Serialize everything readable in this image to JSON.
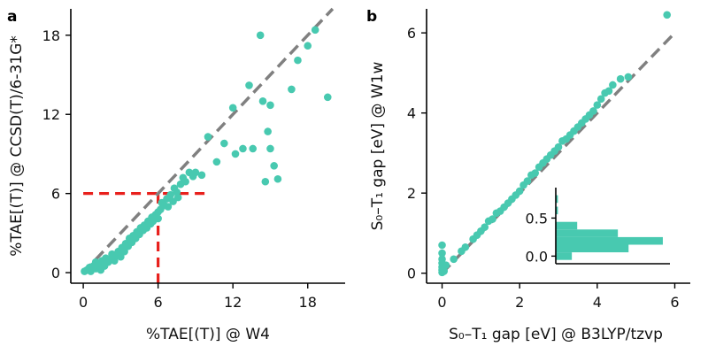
{
  "colors": {
    "points": "#48c9b0",
    "diagonal": "#808080",
    "guide": "#e8201c",
    "axis": "#000000"
  },
  "chart_data": [
    {
      "panel_label": "a",
      "type": "scatter",
      "xlabel": "%TAE[(T)] @ W4",
      "ylabel": "%TAE[(T)] @ CCSD(T)/6-31G*",
      "xlim": [
        -1,
        21
      ],
      "ylim": [
        -0.8,
        20
      ],
      "xticks": [
        "0",
        "6",
        "12",
        "18"
      ],
      "yticks": [
        "0",
        "6",
        "12",
        "18"
      ],
      "diagonal": {
        "from": [
          0,
          0
        ],
        "to": [
          20,
          20
        ],
        "style": "dashed"
      },
      "guide_lines": [
        {
          "type": "horizontal",
          "y": 6,
          "x_from": 0,
          "x_to": 10
        },
        {
          "type": "vertical",
          "x": 6,
          "y_from": -0.8,
          "y_to": 6
        }
      ],
      "points": [
        [
          0.1,
          0.1
        ],
        [
          0.3,
          0.2
        ],
        [
          0.5,
          0.4
        ],
        [
          0.6,
          0.1
        ],
        [
          0.8,
          0.5
        ],
        [
          1.0,
          0.3
        ],
        [
          1.0,
          0.8
        ],
        [
          1.2,
          0.6
        ],
        [
          1.4,
          0.2
        ],
        [
          1.5,
          0.9
        ],
        [
          1.7,
          0.5
        ],
        [
          1.8,
          1.1
        ],
        [
          2.0,
          0.8
        ],
        [
          2.2,
          1.0
        ],
        [
          2.3,
          1.4
        ],
        [
          2.5,
          0.9
        ],
        [
          2.6,
          1.3
        ],
        [
          2.8,
          1.6
        ],
        [
          3.0,
          1.2
        ],
        [
          3.1,
          1.9
        ],
        [
          3.3,
          1.6
        ],
        [
          3.4,
          2.2
        ],
        [
          3.6,
          2.0
        ],
        [
          3.7,
          2.6
        ],
        [
          3.9,
          2.3
        ],
        [
          4.0,
          2.8
        ],
        [
          4.2,
          2.6
        ],
        [
          4.3,
          3.1
        ],
        [
          4.5,
          2.9
        ],
        [
          4.6,
          3.4
        ],
        [
          4.8,
          3.2
        ],
        [
          4.9,
          3.6
        ],
        [
          5.1,
          3.4
        ],
        [
          5.2,
          3.9
        ],
        [
          5.4,
          3.7
        ],
        [
          5.5,
          4.2
        ],
        [
          5.6,
          3.9
        ],
        [
          5.8,
          4.4
        ],
        [
          6.0,
          4.1
        ],
        [
          6.0,
          4.6
        ],
        [
          6.2,
          4.8
        ],
        [
          6.3,
          5.3
        ],
        [
          6.5,
          5.1
        ],
        [
          6.7,
          5.6
        ],
        [
          6.8,
          5.0
        ],
        [
          7.0,
          5.9
        ],
        [
          7.2,
          5.4
        ],
        [
          7.3,
          6.4
        ],
        [
          7.5,
          6.1
        ],
        [
          7.6,
          5.7
        ],
        [
          7.8,
          6.7
        ],
        [
          8.0,
          7.2
        ],
        [
          8.2,
          6.9
        ],
        [
          8.5,
          7.6
        ],
        [
          8.8,
          7.3
        ],
        [
          9.0,
          7.6
        ],
        [
          9.5,
          7.4
        ],
        [
          10.0,
          10.3
        ],
        [
          10.7,
          8.4
        ],
        [
          11.3,
          9.8
        ],
        [
          12.0,
          12.5
        ],
        [
          12.2,
          9.0
        ],
        [
          12.8,
          9.4
        ],
        [
          13.3,
          14.2
        ],
        [
          13.6,
          9.4
        ],
        [
          14.2,
          18.0
        ],
        [
          14.4,
          13.0
        ],
        [
          14.6,
          6.9
        ],
        [
          14.8,
          10.7
        ],
        [
          15.0,
          12.7
        ],
        [
          15.0,
          9.4
        ],
        [
          15.3,
          8.1
        ],
        [
          15.6,
          7.1
        ],
        [
          16.7,
          13.9
        ],
        [
          17.2,
          16.1
        ],
        [
          18.0,
          17.2
        ],
        [
          18.6,
          18.4
        ],
        [
          19.6,
          13.3
        ]
      ]
    },
    {
      "panel_label": "b",
      "type": "scatter",
      "xlabel": "S₀–T₁ gap [eV] @ B3LYP/tzvp",
      "ylabel": "S₀–T₁ gap [eV] @ W1w",
      "xlim": [
        -0.4,
        6.4
      ],
      "ylim": [
        -0.25,
        6.6
      ],
      "xticks": [
        "0",
        "2",
        "4",
        "6"
      ],
      "yticks": [
        "0",
        "2",
        "4",
        "6"
      ],
      "diagonal": {
        "from": [
          0,
          0
        ],
        "to": [
          6,
          6
        ],
        "style": "dashed"
      },
      "points": [
        [
          0.0,
          0.02
        ],
        [
          0.0,
          0.08
        ],
        [
          0.0,
          0.15
        ],
        [
          0.0,
          0.25
        ],
        [
          0.0,
          0.35
        ],
        [
          0.0,
          0.5
        ],
        [
          0.0,
          0.7
        ],
        [
          0.02,
          0.12
        ],
        [
          0.05,
          0.05
        ],
        [
          0.1,
          0.2
        ],
        [
          0.3,
          0.35
        ],
        [
          0.5,
          0.55
        ],
        [
          0.6,
          0.65
        ],
        [
          0.8,
          0.85
        ],
        [
          0.9,
          0.95
        ],
        [
          1.0,
          1.05
        ],
        [
          1.1,
          1.15
        ],
        [
          1.2,
          1.3
        ],
        [
          1.3,
          1.35
        ],
        [
          1.4,
          1.5
        ],
        [
          1.5,
          1.55
        ],
        [
          1.6,
          1.65
        ],
        [
          1.7,
          1.75
        ],
        [
          1.8,
          1.85
        ],
        [
          1.9,
          1.95
        ],
        [
          2.0,
          2.05
        ],
        [
          2.1,
          2.2
        ],
        [
          2.2,
          2.3
        ],
        [
          2.3,
          2.45
        ],
        [
          2.4,
          2.5
        ],
        [
          2.5,
          2.65
        ],
        [
          2.6,
          2.75
        ],
        [
          2.7,
          2.85
        ],
        [
          2.8,
          2.95
        ],
        [
          2.9,
          3.05
        ],
        [
          3.0,
          3.15
        ],
        [
          3.1,
          3.3
        ],
        [
          3.2,
          3.35
        ],
        [
          3.3,
          3.45
        ],
        [
          3.4,
          3.55
        ],
        [
          3.5,
          3.65
        ],
        [
          3.6,
          3.75
        ],
        [
          3.7,
          3.85
        ],
        [
          3.8,
          3.95
        ],
        [
          3.9,
          4.05
        ],
        [
          4.0,
          4.2
        ],
        [
          4.1,
          4.35
        ],
        [
          4.2,
          4.5
        ],
        [
          4.3,
          4.55
        ],
        [
          4.4,
          4.7
        ],
        [
          4.6,
          4.85
        ],
        [
          4.8,
          4.9
        ],
        [
          5.8,
          6.45
        ]
      ],
      "inset": {
        "type": "bar",
        "orientation": "horizontal",
        "yticks": [
          "0.0",
          "0.5"
        ],
        "ylim": [
          -0.1,
          0.9
        ],
        "xlim": [
          0,
          1.05
        ],
        "bins": [
          {
            "y0": -0.05,
            "y1": 0.05,
            "value": 0.15
          },
          {
            "y0": 0.05,
            "y1": 0.15,
            "value": 0.68
          },
          {
            "y0": 0.15,
            "y1": 0.25,
            "value": 1.0
          },
          {
            "y0": 0.25,
            "y1": 0.35,
            "value": 0.58
          },
          {
            "y0": 0.35,
            "y1": 0.45,
            "value": 0.2
          },
          {
            "y0": 0.55,
            "y1": 0.65,
            "value": 0.02
          },
          {
            "y0": 0.7,
            "y1": 0.8,
            "value": 0.02
          }
        ]
      }
    }
  ]
}
